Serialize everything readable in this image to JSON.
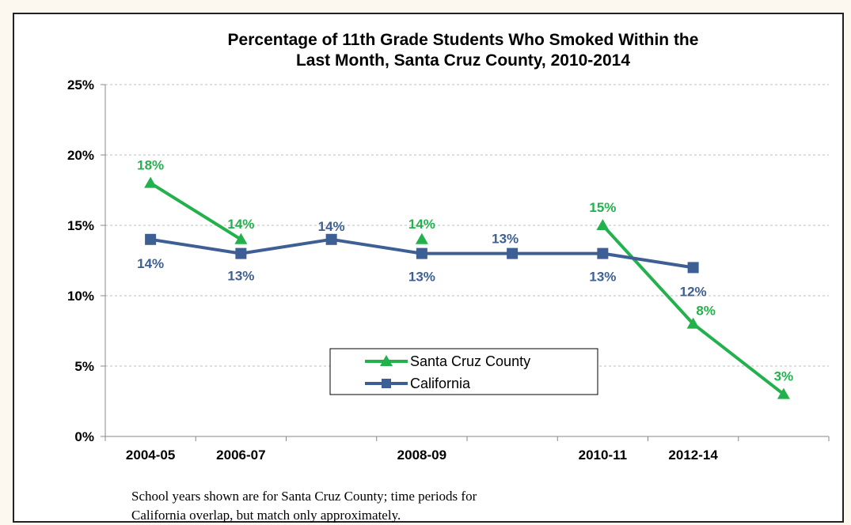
{
  "chart_data": {
    "type": "line",
    "title": [
      "Percentage of 11th Grade Students Who Smoked Within the",
      "Last Month, Santa Cruz County, 2010-2014"
    ],
    "xlabel": "",
    "ylabel": "",
    "ylim": [
      0,
      25
    ],
    "y_ticks": [
      "0%",
      "5%",
      "10%",
      "15%",
      "20%",
      "25%"
    ],
    "y_tick_values": [
      0,
      5,
      10,
      15,
      20,
      25
    ],
    "x_tick_labels": [
      "2004-05",
      "2006-07",
      "",
      "2008-09",
      "",
      "2010-11",
      "2012-14",
      ""
    ],
    "grid": "horizontal-dashed",
    "legend_position": "lower-center",
    "series": [
      {
        "name": "Santa Cruz County",
        "color": "#22b14c",
        "marker": "triangle",
        "x": [
          0.5,
          1.5,
          3.5,
          5.5,
          6.5,
          7.5
        ],
        "values": [
          18,
          14,
          14,
          15,
          8,
          3
        ],
        "labels": [
          "18%",
          "14%",
          "14%",
          "15%",
          "8%",
          "3%"
        ],
        "segments": [
          [
            0,
            1
          ],
          [
            3,
            4
          ],
          [
            4,
            5
          ]
        ]
      },
      {
        "name": "California",
        "color": "#3d5f94",
        "marker": "square",
        "x": [
          0.5,
          1.5,
          2.5,
          3.5,
          4.5,
          5.5,
          6.5
        ],
        "values": [
          14,
          13,
          14,
          13,
          13,
          13,
          12
        ],
        "labels": [
          "14%",
          "13%",
          "14%",
          "13%",
          "13%",
          "13%",
          "12%"
        ],
        "segments": [
          [
            0,
            1
          ],
          [
            1,
            2
          ],
          [
            2,
            3
          ],
          [
            3,
            4
          ],
          [
            4,
            5
          ],
          [
            5,
            6
          ]
        ]
      }
    ]
  },
  "footnote": {
    "line1": "School years shown are for Santa Cruz County; time periods for",
    "line2": "California overlap, but match only approximately."
  }
}
